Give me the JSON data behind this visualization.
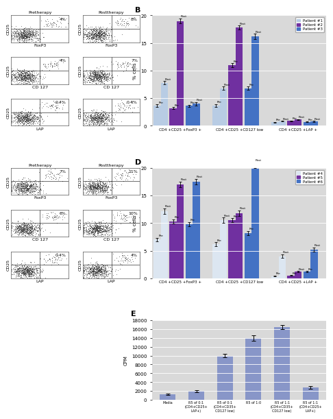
{
  "panel_B": {
    "ylabel": "% cells",
    "ylim": [
      0,
      20
    ],
    "yticks": [
      0,
      5,
      10,
      15,
      20
    ],
    "group_labels": [
      "CD4 +CD25 +FoxP3 +",
      "CD4 +CD25 +CD127 low",
      "CD4 +CD25 +LAP +"
    ],
    "patients": [
      "Patient #1",
      "Patient #2",
      "Patient #3"
    ],
    "colors": [
      "#b8cce4",
      "#7030a0",
      "#4472c4"
    ],
    "data": {
      "FoxP3": {
        "pre": [
          3.6,
          3.2,
          3.6
        ],
        "post": [
          7.8,
          19.0,
          4.0
        ]
      },
      "CD127": {
        "pre": [
          3.7,
          11.0,
          6.8
        ],
        "post": [
          6.8,
          17.8,
          16.2
        ]
      },
      "LAP": {
        "pre": [
          0.65,
          0.9,
          0.7
        ],
        "post": [
          0.85,
          1.15,
          0.8
        ]
      }
    },
    "errors": {
      "FoxP3": {
        "pre": [
          0.25,
          0.2,
          0.2
        ],
        "post": [
          0.3,
          0.45,
          0.3
        ]
      },
      "CD127": {
        "pre": [
          0.25,
          0.35,
          0.3
        ],
        "post": [
          0.3,
          0.4,
          0.45
        ]
      },
      "LAP": {
        "pre": [
          0.08,
          0.08,
          0.08
        ],
        "post": [
          0.08,
          0.08,
          0.08
        ]
      }
    }
  },
  "panel_D": {
    "ylabel": "% cells",
    "ylim": [
      0,
      20
    ],
    "yticks": [
      0,
      5,
      10,
      15,
      20
    ],
    "group_labels": [
      "CD4 +CD25 +FoxP3 +",
      "CD4 +CD25 +CD127 low",
      "CD4 +CD25 +LAP +"
    ],
    "patients": [
      "Patient #4",
      "Patient #5",
      "Patient #6"
    ],
    "colors": [
      "#dce6f1",
      "#7030a0",
      "#4472c4"
    ],
    "data": {
      "FoxP3": {
        "pre": [
          7.0,
          10.3,
          9.8
        ],
        "post": [
          12.2,
          17.0,
          17.5
        ]
      },
      "CD127": {
        "pre": [
          6.2,
          10.5,
          8.2
        ],
        "post": [
          10.5,
          11.8,
          20.5
        ]
      },
      "LAP": {
        "pre": [
          0.4,
          0.5,
          1.2
        ],
        "post": [
          4.0,
          1.2,
          5.2
        ]
      }
    },
    "errors": {
      "FoxP3": {
        "pre": [
          0.35,
          0.4,
          0.4
        ],
        "post": [
          0.5,
          0.5,
          0.5
        ]
      },
      "CD127": {
        "pre": [
          0.35,
          0.4,
          0.4
        ],
        "post": [
          0.5,
          0.5,
          0.55
        ]
      },
      "LAP": {
        "pre": [
          0.08,
          0.08,
          0.12
        ],
        "post": [
          0.35,
          0.12,
          0.4
        ]
      }
    }
  },
  "panel_E": {
    "ylabel": "CPM",
    "ylim": [
      0,
      18000
    ],
    "yticks": [
      0,
      2000,
      4000,
      6000,
      8000,
      10000,
      12000,
      14000,
      16000,
      18000
    ],
    "bar_color": "#8896c8",
    "cat_labels": [
      "Media",
      "R5 of 0:1\n(CD4+CD25+\nLAP+)",
      "R5 of 0:1\n(CD4+CD35+\nCD127 low)",
      "R5 of 1:0",
      "R5 of 1:1\n(CD4+CD35+\nCD127 low)",
      "R5 of 1:1\n(CD4+CD25+\nLAP+)"
    ],
    "values": [
      1200,
      2000,
      10000,
      14000,
      16500,
      2800
    ],
    "errors": [
      150,
      250,
      400,
      600,
      500,
      350
    ]
  },
  "bg_color": "#d9d9d9",
  "flow_dot_color": "#333333",
  "flow_bg": "#f0f0f0"
}
